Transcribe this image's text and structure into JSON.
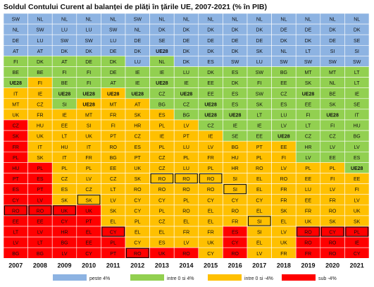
{
  "title": "Soldul Contului Curent al balanței de plăți în țările UE, 2007-2021 (% în PIB)",
  "chart_data": {
    "type": "table",
    "years": [
      "2007",
      "2008",
      "2009",
      "2010",
      "2011",
      "2012",
      "2013",
      "2014",
      "2015",
      "2016",
      "2017",
      "2018",
      "2019",
      "2020",
      "2021"
    ],
    "columns": [
      [
        "SW",
        "NL",
        "DE",
        "AT",
        "FI",
        "BE",
        "UE28",
        "IT",
        "MT",
        "UK",
        "CZ",
        "SK",
        "FR",
        "PL",
        "HU",
        "PT",
        "ES",
        "CY",
        "RO",
        "EE",
        "LT",
        "LV",
        "BG"
      ],
      [
        "NL",
        "SW",
        "LU",
        "AT",
        "DK",
        "BE",
        "FI",
        "IE",
        "CZ",
        "FR",
        "HU",
        "UK",
        "IT",
        "SK",
        "PL",
        "ES",
        "PT",
        "LV",
        "RO",
        "EE",
        "LV",
        "LT",
        "BG"
      ],
      [
        "NL",
        "LU",
        "SW",
        "DK",
        "AT",
        "FI",
        "BE",
        "UE28",
        "SI",
        "IE",
        "EE",
        "LT",
        "HU",
        "IT",
        "PL",
        "CZ",
        "ES",
        "SK",
        "UK",
        "CY",
        "HR",
        "BG",
        "LV"
      ],
      [
        "NL",
        "LU",
        "SW",
        "DK",
        "DE",
        "FI",
        "FI",
        "UE28",
        "UE28",
        "MT",
        "SI",
        "UK",
        "IT",
        "FR",
        "PL",
        "LV",
        "CZ",
        "SK",
        "UK",
        "PT",
        "EL",
        "EE",
        "CY"
      ],
      [
        "NL",
        "SW",
        "LU",
        "DE",
        "DK",
        "DE",
        "AT",
        "UE28",
        "MT",
        "FR",
        "FI",
        "PT",
        "RO",
        "BG",
        "EE",
        "CZ",
        "LT",
        "LV",
        "SK",
        "EL",
        "CY",
        "PL",
        "PT"
      ],
      [
        "SW",
        "NL",
        "DE",
        "DK",
        "LU",
        "IE",
        "IE",
        "UE28",
        "AT",
        "SK",
        "HR",
        "CZ",
        "ES",
        "PT",
        "UK",
        "SK",
        "RO",
        "CY",
        "CY",
        "PL",
        "EL",
        "CY",
        "RO"
      ],
      [
        "NL",
        "DK",
        "SE",
        "UE28",
        "NL",
        "IE",
        "UE28",
        "CZ",
        "BG",
        "ES",
        "PL",
        "IE",
        "PL",
        "CZ",
        "CZ",
        "RO",
        "RO",
        "CY",
        "PL",
        "CZ",
        "EL",
        "ES",
        "UK"
      ],
      [
        "NL",
        "DK",
        "DE",
        "DK",
        "DK",
        "LU",
        "IE",
        "UE28",
        "CZ",
        "BG",
        "LV",
        "PT",
        "LU",
        "PL",
        "LU",
        "RO",
        "RO",
        "PL",
        "RO",
        "EL",
        "FR",
        "LV",
        "RO"
      ],
      [
        "NL",
        "DK",
        "DE",
        "DK",
        "ES",
        "DK",
        "EE",
        "EE",
        "UE28",
        "UE28",
        "CZ",
        "IE",
        "LV",
        "FR",
        "PL",
        "RO",
        "RO",
        "CY",
        "EL",
        "EL",
        "FR",
        "UK",
        "CY"
      ],
      [
        "NL",
        "DK",
        "DE",
        "DK",
        "SW",
        "ES",
        "DK",
        "ES",
        "ES",
        "UE28",
        "IE",
        "SE",
        "BG",
        "HU",
        "HR",
        "SI",
        "SI",
        "CY",
        "RO",
        "FR",
        "ES",
        "CY",
        "RO"
      ],
      [
        "NL",
        "DK",
        "DE",
        "SK",
        "LU",
        "SW",
        "FI",
        "SW",
        "SK",
        "LT",
        "IE",
        "EE",
        "PT",
        "PL",
        "RO",
        "EL",
        "EL",
        "CY",
        "EL",
        "SI",
        "SI",
        "EL",
        "LV"
      ],
      [
        "NL",
        "DE",
        "DK",
        "NL",
        "SW",
        "BG",
        "EE",
        "CZ",
        "ES",
        "LU",
        "LV",
        "UE28",
        "EE",
        "FI",
        "LV",
        "RO",
        "FR",
        "FR",
        "SK",
        "EL",
        "LV",
        "UK",
        "FR"
      ],
      [
        "NL",
        "DE",
        "DK",
        "LT",
        "SW",
        "MT",
        "SK",
        "UE28",
        "EE",
        "FI",
        "LT",
        "CZ",
        "HR",
        "LV",
        "PL",
        "EE",
        "LU",
        "EE",
        "FR",
        "UK",
        "RO",
        "RO",
        "FR"
      ],
      [
        "NL",
        "DK",
        "DE",
        "SI",
        "SW",
        "MT",
        "NL",
        "BE",
        "SK",
        "UE28",
        "FI",
        "CZ",
        "LV",
        "EE",
        "PL",
        "FI",
        "LV",
        "FR",
        "RO",
        "SK",
        "CY",
        "RO",
        "RO"
      ],
      [
        "NL",
        "DK",
        "SE",
        "SI",
        "SW",
        "LT",
        "LT",
        "IE",
        "SE",
        "IT",
        "HU",
        "BG",
        "LV",
        "ES",
        "UE28",
        "EE",
        "FI",
        "LV",
        "UK",
        "SK",
        "PL",
        "IE",
        "CY"
      ]
    ],
    "categories": [
      [
        "c",
        "c",
        "c",
        "c",
        "g",
        "g",
        "g",
        "y",
        "y",
        "y",
        "r",
        "r",
        "r",
        "r",
        "r",
        "r",
        "r",
        "r",
        "r",
        "r",
        "r",
        "r",
        "r"
      ],
      [
        "c",
        "c",
        "c",
        "c",
        "g",
        "g",
        "y",
        "y",
        "y",
        "y",
        "y",
        "y",
        "y",
        "y",
        "r",
        "r",
        "r",
        "r",
        "r",
        "r",
        "r",
        "r",
        "r"
      ],
      [
        "c",
        "c",
        "c",
        "c",
        "g",
        "g",
        "g",
        "g",
        "g",
        "y",
        "y",
        "y",
        "y",
        "y",
        "y",
        "y",
        "y",
        "y",
        "r",
        "r",
        "r",
        "r",
        "r"
      ],
      [
        "c",
        "c",
        "c",
        "c",
        "g",
        "g",
        "g",
        "g",
        "y",
        "y",
        "y",
        "y",
        "y",
        "y",
        "y",
        "y",
        "y",
        "y",
        "r",
        "r",
        "r",
        "r",
        "r"
      ],
      [
        "c",
        "c",
        "c",
        "c",
        "g",
        "g",
        "g",
        "y",
        "y",
        "y",
        "y",
        "y",
        "y",
        "y",
        "y",
        "y",
        "y",
        "y",
        "y",
        "y",
        "r",
        "r",
        "r"
      ],
      [
        "c",
        "c",
        "c",
        "c",
        "c",
        "g",
        "g",
        "g",
        "y",
        "y",
        "y",
        "y",
        "y",
        "y",
        "y",
        "y",
        "y",
        "y",
        "y",
        "y",
        "y",
        "y",
        "r"
      ],
      [
        "c",
        "c",
        "c",
        "c",
        "g",
        "g",
        "g",
        "g",
        "g",
        "y",
        "y",
        "y",
        "y",
        "y",
        "y",
        "y",
        "y",
        "y",
        "y",
        "y",
        "y",
        "y",
        "r"
      ],
      [
        "c",
        "c",
        "c",
        "c",
        "c",
        "g",
        "g",
        "g",
        "g",
        "g",
        "y",
        "y",
        "y",
        "y",
        "y",
        "y",
        "y",
        "y",
        "y",
        "y",
        "y",
        "y",
        "r"
      ],
      [
        "c",
        "c",
        "c",
        "c",
        "c",
        "g",
        "g",
        "g",
        "g",
        "g",
        "g",
        "y",
        "y",
        "y",
        "y",
        "y",
        "y",
        "y",
        "y",
        "y",
        "y",
        "y",
        "y"
      ],
      [
        "c",
        "c",
        "c",
        "c",
        "c",
        "g",
        "g",
        "g",
        "g",
        "g",
        "g",
        "g",
        "y",
        "y",
        "y",
        "y",
        "y",
        "y",
        "y",
        "y",
        "r",
        "r",
        "r"
      ],
      [
        "c",
        "c",
        "c",
        "c",
        "c",
        "g",
        "g",
        "g",
        "g",
        "g",
        "g",
        "g",
        "y",
        "y",
        "y",
        "y",
        "y",
        "y",
        "y",
        "y",
        "y",
        "y",
        "y"
      ],
      [
        "c",
        "c",
        "c",
        "c",
        "c",
        "g",
        "g",
        "g",
        "g",
        "g",
        "g",
        "g",
        "y",
        "y",
        "y",
        "y",
        "y",
        "y",
        "y",
        "y",
        "y",
        "y",
        "y"
      ],
      [
        "c",
        "c",
        "c",
        "c",
        "c",
        "g",
        "g",
        "g",
        "g",
        "g",
        "g",
        "g",
        "g",
        "g",
        "y",
        "y",
        "y",
        "y",
        "y",
        "y",
        "r",
        "r",
        "r"
      ],
      [
        "c",
        "c",
        "c",
        "c",
        "c",
        "g",
        "g",
        "g",
        "g",
        "g",
        "g",
        "g",
        "g",
        "g",
        "y",
        "y",
        "y",
        "y",
        "y",
        "y",
        "r",
        "r",
        "r"
      ],
      [
        "c",
        "c",
        "c",
        "c",
        "c",
        "g",
        "g",
        "g",
        "g",
        "g",
        "g",
        "g",
        "g",
        "g",
        "g",
        "y",
        "y",
        "y",
        "y",
        "y",
        "r",
        "r",
        "r"
      ]
    ],
    "boxed": [
      [
        18
      ],
      [
        18
      ],
      [
        18
      ],
      [
        17
      ],
      [
        20
      ],
      [
        22
      ],
      [
        15
      ],
      [
        15
      ],
      [
        15
      ],
      [
        16
      ],
      [
        19
      ],
      [],
      [
        20
      ],
      [
        20
      ],
      [
        20
      ]
    ],
    "legend": [
      {
        "key": "c",
        "label": "peste 4%",
        "color": "#8db3e2"
      },
      {
        "key": "g",
        "label": "intre 0 si 4%",
        "color": "#92d050"
      },
      {
        "key": "y",
        "label": "intre 0 si -4%",
        "color": "#ffc000"
      },
      {
        "key": "r",
        "label": "sub -4%",
        "color": "#ff0000"
      }
    ],
    "grid": true,
    "legend_position": "bottom"
  }
}
